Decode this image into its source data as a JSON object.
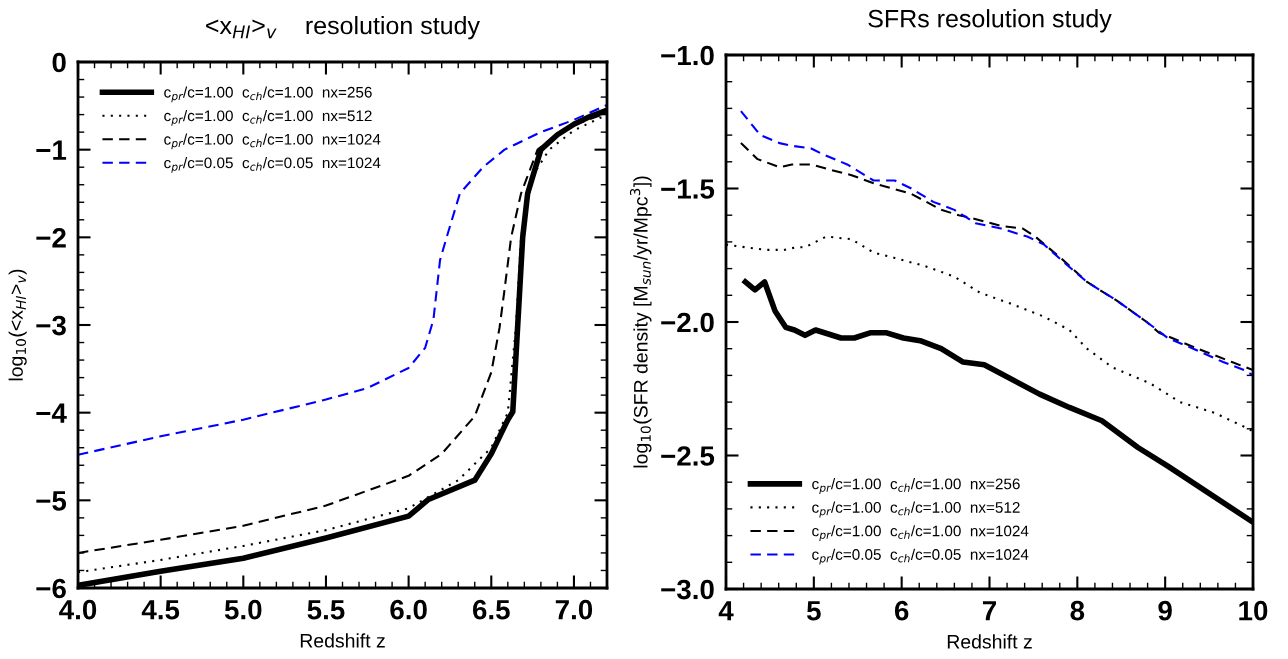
{
  "chart_data": [
    {
      "type": "line",
      "title": "<x$_{HI}$>$_{v}$    resolution study",
      "xlabel": "Redshift z",
      "ylabel": "log$_{10}$(<x$_{HI}$>$_{v}$)",
      "xlim": [
        4.0,
        7.2
      ],
      "ylim": [
        -6,
        0
      ],
      "xticks": [
        {
          "value": 4.0,
          "label": "4.0"
        },
        {
          "value": 4.5,
          "label": "4.5"
        },
        {
          "value": 5.0,
          "label": "5.0"
        },
        {
          "value": 5.5,
          "label": "5.5"
        },
        {
          "value": 6.0,
          "label": "6.0"
        },
        {
          "value": 6.5,
          "label": "6.5"
        },
        {
          "value": 7.0,
          "label": "7.0"
        }
      ],
      "yticks": [
        {
          "value": -6,
          "label": "−6"
        },
        {
          "value": -5,
          "label": "−5"
        },
        {
          "value": -4,
          "label": "−4"
        },
        {
          "value": -3,
          "label": "−3"
        },
        {
          "value": -2,
          "label": "−2"
        },
        {
          "value": -1,
          "label": "−1"
        },
        0
      ],
      "legend": "top left",
      "grid": false,
      "marker": "none",
      "series": [
        {
          "name": "c$_{pr}$/c=1.00  c$_{ch}$/c=1.00  nx=256",
          "color": "#000000",
          "line_style": "solid",
          "x": [
            4.0,
            4.5,
            5.0,
            5.5,
            6.0,
            6.12,
            6.4,
            6.5,
            6.6,
            6.63,
            6.66,
            6.69,
            6.72,
            6.8,
            6.9,
            7.0,
            7.1,
            7.2
          ],
          "values": [
            -5.97,
            -5.81,
            -5.66,
            -5.43,
            -5.18,
            -4.99,
            -4.77,
            -4.47,
            -4.08,
            -3.99,
            -3.0,
            -2.0,
            -1.5,
            -1.0,
            -0.83,
            -0.71,
            -0.62,
            -0.55
          ]
        },
        {
          "name": "c$_{pr}$/c=1.00  c$_{ch}$/c=1.00  nx=512",
          "color": "#000000",
          "line_style": "dotted",
          "x": [
            4.0,
            4.5,
            5.0,
            5.5,
            6.0,
            6.3,
            6.5,
            6.6,
            6.65,
            6.68,
            6.75,
            6.85,
            7.0,
            7.2
          ],
          "values": [
            -5.82,
            -5.68,
            -5.52,
            -5.34,
            -5.09,
            -4.77,
            -4.4,
            -4.0,
            -3.0,
            -2.0,
            -1.3,
            -1.0,
            -0.78,
            -0.6
          ]
        },
        {
          "name": "c$_{pr}$/c=1.00  c$_{ch}$/c=1.00  nx=1024",
          "color": "#000000",
          "line_style": "dashed",
          "x": [
            4.0,
            4.5,
            5.0,
            5.5,
            6.0,
            6.2,
            6.4,
            6.5,
            6.55,
            6.58,
            6.62,
            6.68,
            6.78,
            6.9,
            7.0,
            7.2
          ],
          "values": [
            -5.6,
            -5.45,
            -5.29,
            -5.06,
            -4.72,
            -4.47,
            -4.04,
            -3.54,
            -3.03,
            -2.6,
            -2.0,
            -1.5,
            -1.0,
            -0.82,
            -0.72,
            -0.58
          ]
        },
        {
          "name": "c$_{pr}$/c=0.05  c$_{ch}$/c=0.05  nx=1024",
          "color": "#0000ff",
          "line_style": "dashed",
          "x": [
            4.0,
            4.5,
            5.0,
            5.5,
            5.75,
            6.0,
            6.1,
            6.15,
            6.19,
            6.23,
            6.31,
            6.45,
            6.58,
            6.8,
            7.0,
            7.2
          ],
          "values": [
            -4.48,
            -4.27,
            -4.08,
            -3.85,
            -3.72,
            -3.49,
            -3.26,
            -2.94,
            -2.26,
            -2.0,
            -1.5,
            -1.2,
            -1.0,
            -0.8,
            -0.66,
            -0.49
          ]
        }
      ]
    },
    {
      "type": "line",
      "title": "SFRs resolution study",
      "xlabel": "Redshift z",
      "ylabel": "log$_{10}$(SFR density [M$_{sun}$/yr/Mpc$^{3}$])",
      "xlim": [
        4,
        10
      ],
      "ylim": [
        -3.0,
        -1.0
      ],
      "xticks": [
        4,
        5,
        6,
        7,
        8,
        9,
        10
      ],
      "yticks": [
        {
          "value": -3.0,
          "label": "−3.0"
        },
        {
          "value": -2.5,
          "label": "−2.5"
        },
        {
          "value": -2.0,
          "label": "−2.0"
        },
        {
          "value": -1.5,
          "label": "−1.5"
        },
        {
          "value": -1.0,
          "label": "−1.0"
        }
      ],
      "legend": "lower left",
      "grid": false,
      "marker": "none",
      "series": [
        {
          "name": "c$_{pr}$/c=1.00  c$_{ch}$/c=1.00  nx=256",
          "color": "#000000",
          "line_style": "solid",
          "x": [
            4.22,
            4.33,
            4.44,
            4.56,
            4.68,
            4.78,
            4.9,
            5.02,
            5.31,
            5.46,
            5.65,
            5.82,
            6.02,
            6.21,
            6.45,
            6.7,
            6.94,
            7.57,
            7.91,
            8.28,
            8.69,
            9.03,
            10.0
          ],
          "values": [
            -1.85,
            -1.88,
            -1.85,
            -1.96,
            -2.02,
            -2.03,
            -2.05,
            -2.03,
            -2.06,
            -2.06,
            -2.04,
            -2.04,
            -2.06,
            -2.07,
            -2.1,
            -2.15,
            -2.16,
            -2.27,
            -2.32,
            -2.37,
            -2.47,
            -2.54,
            -2.75
          ]
        },
        {
          "name": "c$_{pr}$/c=1.00  c$_{ch}$/c=1.00  nx=512",
          "color": "#000000",
          "line_style": "dotted",
          "x": [
            4.0,
            4.22,
            4.46,
            4.66,
            4.8,
            4.9,
            5.14,
            5.43,
            5.68,
            5.92,
            6.26,
            6.6,
            6.89,
            7.23,
            7.62,
            7.91,
            8.11,
            8.4,
            8.83,
            9.17,
            9.56,
            9.95,
            10.0
          ],
          "values": [
            -1.71,
            -1.72,
            -1.73,
            -1.73,
            -1.72,
            -1.72,
            -1.68,
            -1.69,
            -1.74,
            -1.76,
            -1.79,
            -1.83,
            -1.89,
            -1.93,
            -1.98,
            -2.03,
            -2.1,
            -2.17,
            -2.23,
            -2.3,
            -2.34,
            -2.4,
            -2.41
          ]
        },
        {
          "name": "c$_{pr}$/c=1.00  c$_{ch}$/c=1.00  nx=1024",
          "color": "#000000",
          "line_style": "dashed",
          "x": [
            4.17,
            4.36,
            4.61,
            4.75,
            4.97,
            5.19,
            5.43,
            5.68,
            6.11,
            6.45,
            6.65,
            6.79,
            7.13,
            7.38,
            7.52,
            7.81,
            8.11,
            8.45,
            8.79,
            8.93,
            9.37,
            9.76,
            10.0
          ],
          "values": [
            -1.33,
            -1.39,
            -1.42,
            -1.41,
            -1.41,
            -1.43,
            -1.45,
            -1.48,
            -1.52,
            -1.58,
            -1.6,
            -1.61,
            -1.64,
            -1.65,
            -1.68,
            -1.76,
            -1.85,
            -1.92,
            -2.0,
            -2.04,
            -2.1,
            -2.15,
            -2.18
          ]
        },
        {
          "name": "c$_{pr}$/c=0.05  c$_{ch}$/c=0.05  nx=1024",
          "color": "#0000ff",
          "line_style": "dashed",
          "x": [
            4.17,
            4.39,
            4.61,
            4.75,
            4.97,
            5.09,
            5.38,
            5.68,
            5.92,
            6.11,
            6.36,
            6.6,
            6.84,
            7.13,
            7.43,
            7.62,
            7.86,
            8.11,
            8.45,
            8.79,
            9.03,
            9.32,
            9.66,
            9.9,
            10.0
          ],
          "values": [
            -1.21,
            -1.3,
            -1.33,
            -1.34,
            -1.35,
            -1.37,
            -1.41,
            -1.47,
            -1.47,
            -1.5,
            -1.55,
            -1.58,
            -1.63,
            -1.65,
            -1.68,
            -1.71,
            -1.78,
            -1.85,
            -1.92,
            -2.0,
            -2.06,
            -2.1,
            -2.15,
            -2.18,
            -2.2
          ]
        }
      ]
    }
  ]
}
